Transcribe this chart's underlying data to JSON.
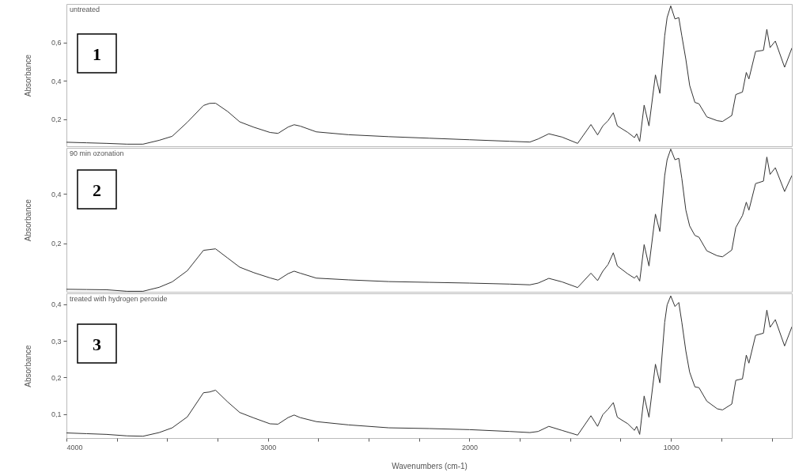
{
  "chart_data": [
    {
      "type": "line",
      "title": "untreated",
      "ylabel": "Absorbance",
      "annotations": [
        "1"
      ],
      "color": "#333333",
      "line_style": "solid",
      "tick_labels": "y",
      "xlim": [
        4000,
        400
      ],
      "ylim": [
        0.06,
        0.8
      ],
      "yticks": [
        {
          "value": 0.2,
          "label": "0,2"
        },
        {
          "value": 0.4,
          "label": "0,4"
        },
        {
          "value": 0.6,
          "label": "0,6"
        }
      ],
      "x": [
        4000,
        3900,
        3800,
        3700,
        3620,
        3540,
        3475,
        3400,
        3320,
        3290,
        3260,
        3200,
        3140,
        3070,
        2990,
        2950,
        2900,
        2870,
        2840,
        2760,
        2600,
        2400,
        2200,
        2000,
        1800,
        1700,
        1659,
        1606,
        1541,
        1463,
        1397,
        1364,
        1338,
        1312,
        1286,
        1266,
        1214,
        1181,
        1170,
        1155,
        1133,
        1109,
        1077,
        1055,
        1031,
        1019,
        1001,
        980,
        961,
        946,
        926,
        907,
        881,
        861,
        822,
        770,
        744,
        698,
        678,
        645,
        626,
        613,
        580,
        541,
        524,
        508,
        482,
        436,
        400
      ],
      "values": [
        0.081,
        0.078,
        0.075,
        0.071,
        0.071,
        0.091,
        0.112,
        0.185,
        0.272,
        0.283,
        0.284,
        0.241,
        0.187,
        0.159,
        0.132,
        0.127,
        0.16,
        0.172,
        0.165,
        0.135,
        0.12,
        0.11,
        0.102,
        0.094,
        0.086,
        0.082,
        0.098,
        0.125,
        0.108,
        0.075,
        0.173,
        0.119,
        0.166,
        0.193,
        0.234,
        0.166,
        0.132,
        0.105,
        0.125,
        0.085,
        0.274,
        0.166,
        0.431,
        0.335,
        0.634,
        0.729,
        0.79,
        0.722,
        0.729,
        0.634,
        0.512,
        0.376,
        0.288,
        0.281,
        0.213,
        0.193,
        0.189,
        0.22,
        0.329,
        0.342,
        0.444,
        0.41,
        0.553,
        0.559,
        0.668,
        0.573,
        0.607,
        0.471,
        0.57
      ]
    },
    {
      "type": "line",
      "title": "90 min ozonation",
      "ylabel": "Absorbance",
      "annotations": [
        "2"
      ],
      "color": "#333333",
      "line_style": "solid",
      "tick_labels": "y",
      "xlim": [
        4000,
        400
      ],
      "ylim": [
        0.005,
        0.585
      ],
      "yticks": [
        {
          "value": 0.2,
          "label": "0,2"
        },
        {
          "value": 0.4,
          "label": "0,4"
        }
      ],
      "x": [
        4000,
        3900,
        3800,
        3700,
        3620,
        3540,
        3475,
        3400,
        3320,
        3290,
        3260,
        3200,
        3140,
        3070,
        2990,
        2950,
        2900,
        2870,
        2840,
        2760,
        2600,
        2400,
        2200,
        2000,
        1800,
        1700,
        1659,
        1606,
        1541,
        1463,
        1397,
        1364,
        1338,
        1312,
        1286,
        1266,
        1214,
        1181,
        1170,
        1155,
        1133,
        1109,
        1077,
        1055,
        1031,
        1019,
        1001,
        980,
        961,
        946,
        926,
        907,
        881,
        861,
        822,
        770,
        744,
        698,
        678,
        645,
        626,
        613,
        580,
        541,
        524,
        508,
        482,
        436,
        400
      ],
      "values": [
        0.015,
        0.014,
        0.013,
        0.007,
        0.007,
        0.023,
        0.045,
        0.09,
        0.172,
        0.175,
        0.178,
        0.141,
        0.104,
        0.082,
        0.061,
        0.052,
        0.078,
        0.088,
        0.08,
        0.06,
        0.053,
        0.046,
        0.043,
        0.04,
        0.036,
        0.033,
        0.04,
        0.059,
        0.045,
        0.022,
        0.08,
        0.05,
        0.088,
        0.115,
        0.162,
        0.109,
        0.077,
        0.06,
        0.07,
        0.048,
        0.195,
        0.109,
        0.318,
        0.248,
        0.473,
        0.537,
        0.58,
        0.537,
        0.543,
        0.462,
        0.334,
        0.27,
        0.232,
        0.225,
        0.17,
        0.15,
        0.146,
        0.173,
        0.264,
        0.312,
        0.366,
        0.334,
        0.441,
        0.451,
        0.548,
        0.478,
        0.505,
        0.409,
        0.473
      ]
    },
    {
      "type": "line",
      "title": "treated with hydrogen peroxide",
      "ylabel": "Absorbance",
      "xlabel": "Wavenumbers (cm-1)",
      "annotations": [
        "3"
      ],
      "color": "#333333",
      "line_style": "solid",
      "xlim": [
        4000,
        400
      ],
      "ylim": [
        0.034,
        0.43
      ],
      "xticks": [
        4000,
        {
          "value": 3750,
          "label": null
        },
        {
          "value": 3500,
          "label": null
        },
        {
          "value": 3250,
          "label": null
        },
        3000,
        {
          "value": 2750,
          "label": null
        },
        {
          "value": 2500,
          "label": null
        },
        {
          "value": 2250,
          "label": null
        },
        2000,
        {
          "value": 1750,
          "label": null
        },
        {
          "value": 1500,
          "label": null
        },
        {
          "value": 1250,
          "label": null
        },
        1000,
        {
          "value": 750,
          "label": null
        },
        {
          "value": 500,
          "label": null
        }
      ],
      "yticks": [
        {
          "value": 0.1,
          "label": "0,1"
        },
        {
          "value": 0.2,
          "label": "0,2"
        },
        {
          "value": 0.3,
          "label": "0,3"
        },
        {
          "value": 0.4,
          "label": "0,4"
        }
      ],
      "x": [
        4000,
        3900,
        3800,
        3700,
        3620,
        3540,
        3475,
        3400,
        3320,
        3290,
        3260,
        3200,
        3140,
        3070,
        2990,
        2950,
        2900,
        2870,
        2840,
        2760,
        2600,
        2400,
        2200,
        2000,
        1800,
        1700,
        1659,
        1606,
        1541,
        1463,
        1397,
        1364,
        1338,
        1312,
        1286,
        1266,
        1214,
        1181,
        1170,
        1155,
        1133,
        1109,
        1077,
        1055,
        1031,
        1019,
        1001,
        980,
        961,
        946,
        926,
        907,
        881,
        861,
        822,
        770,
        744,
        698,
        678,
        645,
        626,
        613,
        580,
        541,
        524,
        508,
        482,
        436,
        400
      ],
      "values": [
        0.048,
        0.046,
        0.044,
        0.04,
        0.039,
        0.049,
        0.062,
        0.092,
        0.158,
        0.16,
        0.165,
        0.133,
        0.104,
        0.089,
        0.073,
        0.072,
        0.09,
        0.097,
        0.09,
        0.079,
        0.07,
        0.062,
        0.06,
        0.057,
        0.052,
        0.049,
        0.052,
        0.066,
        0.055,
        0.042,
        0.095,
        0.066,
        0.098,
        0.113,
        0.131,
        0.091,
        0.073,
        0.055,
        0.066,
        0.044,
        0.149,
        0.091,
        0.236,
        0.185,
        0.351,
        0.398,
        0.423,
        0.394,
        0.405,
        0.351,
        0.272,
        0.214,
        0.174,
        0.172,
        0.135,
        0.114,
        0.111,
        0.127,
        0.192,
        0.196,
        0.261,
        0.239,
        0.315,
        0.321,
        0.384,
        0.337,
        0.358,
        0.286,
        0.338
      ]
    }
  ]
}
